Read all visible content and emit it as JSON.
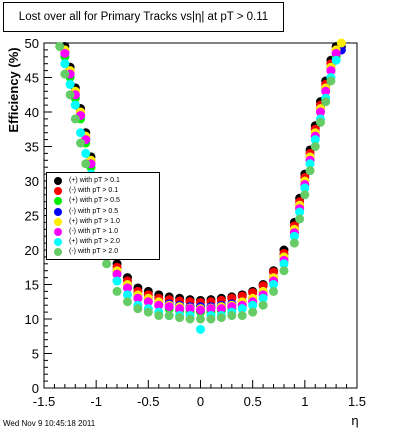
{
  "chart_data": {
    "type": "scatter",
    "title": "Lost over all for Primary Tracks vs|η| at pT > 0.11",
    "xlabel": "η",
    "ylabel": "Efficiency (%)",
    "xlim": [
      -1.5,
      1.5
    ],
    "ylim": [
      0,
      50
    ],
    "x_ticks": [
      "-1.5",
      "-1",
      "-0.5",
      "0",
      "0.5",
      "1",
      "1.5"
    ],
    "y_ticks": [
      "0",
      "5",
      "10",
      "15",
      "20",
      "25",
      "30",
      "35",
      "40",
      "45",
      "50"
    ],
    "grid": false,
    "legend_position": "left-middle",
    "series": [
      {
        "name": "(+) with pT > 0.1",
        "color": "#000000",
        "x": [
          -1.3,
          -1.25,
          -1.2,
          -1.15,
          -1.1,
          -1.05,
          -1.0,
          -0.95,
          -0.9,
          -0.8,
          -0.7,
          -0.6,
          -0.5,
          -0.4,
          -0.3,
          -0.2,
          -0.1,
          0.0,
          0.1,
          0.2,
          0.3,
          0.4,
          0.5,
          0.6,
          0.7,
          0.8,
          0.9,
          0.95,
          1.0,
          1.05,
          1.1,
          1.15,
          1.2,
          1.25,
          1.3,
          1.35
        ],
        "y": [
          49.5,
          46.5,
          43.5,
          40.5,
          37,
          33.5,
          29.5,
          25.5,
          22,
          18,
          16,
          14.5,
          14,
          13.5,
          13.2,
          13,
          12.8,
          12.7,
          12.8,
          13,
          13.2,
          13.5,
          14,
          15,
          17,
          20,
          24,
          27.5,
          31,
          34.5,
          38,
          41.5,
          44.5,
          47.5,
          49.5,
          49.5
        ]
      },
      {
        "name": "(-) with pT > 0.1",
        "color": "#ff0000",
        "x": [
          -1.3,
          -1.25,
          -1.2,
          -1.15,
          -1.1,
          -1.05,
          -1.0,
          -0.95,
          -0.9,
          -0.8,
          -0.7,
          -0.6,
          -0.5,
          -0.4,
          -0.3,
          -0.2,
          -0.1,
          0.0,
          0.1,
          0.2,
          0.3,
          0.4,
          0.5,
          0.6,
          0.7,
          0.8,
          0.9,
          0.95,
          1.0,
          1.05,
          1.1,
          1.15,
          1.2,
          1.25,
          1.3,
          1.35
        ],
        "y": [
          48.8,
          46,
          43,
          40,
          36.5,
          33,
          29,
          25,
          21.5,
          17.5,
          15.5,
          14,
          13.5,
          13,
          12.8,
          12.6,
          12.5,
          12.4,
          12.5,
          12.7,
          13,
          13.3,
          13.8,
          14.8,
          16.8,
          19.5,
          23.5,
          27,
          30.5,
          34,
          37.5,
          41,
          44,
          47,
          49,
          49
        ]
      },
      {
        "name": "(+) with pT > 0.5",
        "color": "#00ee00",
        "x": [
          -1.3,
          -1.25,
          -1.2,
          -1.15,
          -1.1,
          -1.05,
          -1.0,
          -0.95,
          -0.9,
          -0.8,
          -0.7,
          -0.6,
          -0.5,
          -0.4,
          -0.3,
          -0.2,
          -0.1,
          0.0,
          0.1,
          0.2,
          0.3,
          0.4,
          0.5,
          0.6,
          0.7,
          0.8,
          0.9,
          0.95,
          1.0,
          1.05,
          1.1,
          1.15,
          1.2,
          1.25,
          1.3
        ],
        "y": [
          48,
          45,
          42,
          39,
          35.5,
          32,
          28,
          24,
          20.5,
          16.5,
          14.5,
          13,
          12.5,
          12,
          11.5,
          11.2,
          11,
          11,
          11,
          11.2,
          11.5,
          12,
          12.5,
          13.5,
          15.5,
          18.5,
          22.5,
          26,
          29.5,
          33,
          36.5,
          40,
          43,
          46,
          48
        ]
      },
      {
        "name": "(-) with pT > 0.5",
        "color": "#0000ff",
        "x": [
          -1.3,
          -1.25,
          -1.2,
          -1.15,
          -1.1,
          -1.05,
          -1.0,
          -0.95,
          -0.9,
          -0.8,
          -0.7,
          -0.6,
          -0.5,
          -0.4,
          -0.3,
          -0.2,
          -0.1,
          0.0,
          0.1,
          0.2,
          0.3,
          0.4,
          0.5,
          0.6,
          0.7,
          0.8,
          0.9,
          0.95,
          1.0,
          1.05,
          1.1,
          1.15,
          1.2,
          1.25,
          1.3,
          1.35
        ],
        "y": [
          48.5,
          45.5,
          42.5,
          39.5,
          36,
          32.5,
          28.5,
          24.5,
          21,
          17,
          15,
          13.5,
          13,
          12.5,
          12.2,
          12,
          11.8,
          11.8,
          11.8,
          12,
          12.2,
          12.5,
          13,
          14,
          16,
          19,
          23,
          26.5,
          30,
          33.5,
          37,
          40.5,
          43.5,
          46.5,
          48.5,
          49
        ]
      },
      {
        "name": "(+) with pT > 1.0",
        "color": "#ffee00",
        "x": [
          -1.3,
          -1.25,
          -1.2,
          -1.15,
          -1.1,
          -1.05,
          -1.0,
          -0.95,
          -0.9,
          -0.8,
          -0.7,
          -0.6,
          -0.5,
          -0.4,
          -0.3,
          -0.2,
          -0.1,
          0.0,
          0.1,
          0.2,
          0.3,
          0.4,
          0.5,
          0.6,
          0.7,
          0.8,
          0.9,
          0.95,
          1.0,
          1.05,
          1.1,
          1.15,
          1.2,
          1.25,
          1.3,
          1.35
        ],
        "y": [
          49,
          46,
          43,
          40,
          36.5,
          33,
          29,
          25,
          21.5,
          17,
          15,
          13.5,
          13,
          12.5,
          12,
          11.8,
          11.6,
          11.5,
          11.6,
          11.8,
          12,
          12.5,
          13,
          14,
          16,
          19,
          23,
          26.5,
          30,
          33.5,
          37,
          40.5,
          43.5,
          46.5,
          49,
          50
        ]
      },
      {
        "name": "(-) with pT > 1.0",
        "color": "#ff00ff",
        "x": [
          -1.3,
          -1.25,
          -1.2,
          -1.15,
          -1.1,
          -1.05,
          -1.0,
          -0.95,
          -0.9,
          -0.8,
          -0.7,
          -0.6,
          -0.5,
          -0.4,
          -0.3,
          -0.2,
          -0.1,
          0.0,
          0.1,
          0.2,
          0.3,
          0.4,
          0.5,
          0.6,
          0.7,
          0.8,
          0.9,
          0.95,
          1.0,
          1.05,
          1.1,
          1.15,
          1.2,
          1.25,
          1.3
        ],
        "y": [
          48.5,
          45.5,
          42.5,
          39.5,
          36,
          32.5,
          28.5,
          24.5,
          21,
          16.5,
          14.5,
          13,
          12.5,
          12,
          11.8,
          11.5,
          11.5,
          11.3,
          11.5,
          11.5,
          11.8,
          12,
          12.5,
          13.5,
          15.5,
          18.5,
          22.5,
          26,
          29.5,
          33,
          36.5,
          40,
          43,
          46,
          48.5
        ]
      },
      {
        "name": "(+) with pT > 2.0",
        "color": "#00ffff",
        "x": [
          -1.3,
          -1.25,
          -1.2,
          -1.15,
          -1.1,
          -1.05,
          -1.0,
          -0.95,
          -0.9,
          -0.8,
          -0.7,
          -0.6,
          -0.5,
          -0.4,
          -0.3,
          -0.2,
          -0.1,
          0.0,
          0.1,
          0.2,
          0.3,
          0.4,
          0.5,
          0.6,
          0.7,
          0.8,
          0.9,
          0.95,
          1.0,
          1.05,
          1.1,
          1.15,
          1.2,
          1.25,
          1.3
        ],
        "y": [
          47,
          44,
          41,
          37,
          34,
          31,
          27,
          23,
          19.5,
          15.5,
          13.5,
          12,
          11.5,
          11,
          10.5,
          10.5,
          10.5,
          8.5,
          10.5,
          10.5,
          11,
          11.5,
          12,
          13,
          15,
          18,
          22,
          25.5,
          29,
          32.5,
          36,
          39,
          42,
          45,
          47.5
        ]
      },
      {
        "name": "(-) with pT > 2.0",
        "color": "#66cc66",
        "x": [
          -1.35,
          -1.3,
          -1.25,
          -1.2,
          -1.15,
          -1.1,
          -1.05,
          -1.0,
          -0.95,
          -0.9,
          -0.8,
          -0.7,
          -0.6,
          -0.5,
          -0.4,
          -0.3,
          -0.2,
          -0.1,
          0.0,
          0.1,
          0.2,
          0.3,
          0.4,
          0.5,
          0.6,
          0.7,
          0.8,
          0.9,
          0.95,
          1.0,
          1.05,
          1.1,
          1.15,
          1.2,
          1.25
        ],
        "y": [
          49.5,
          45.5,
          42.5,
          39,
          35.5,
          32.5,
          29,
          25,
          21.5,
          18,
          14,
          12.5,
          11.5,
          11,
          10.5,
          10.5,
          10.2,
          10,
          10,
          10,
          10.2,
          10.5,
          10.5,
          11,
          12,
          14,
          17,
          21,
          24.5,
          28,
          31.5,
          35,
          38.5,
          41.5,
          44.5
        ]
      }
    ]
  },
  "footer": "Wed Nov  9 10:45:18 2011"
}
